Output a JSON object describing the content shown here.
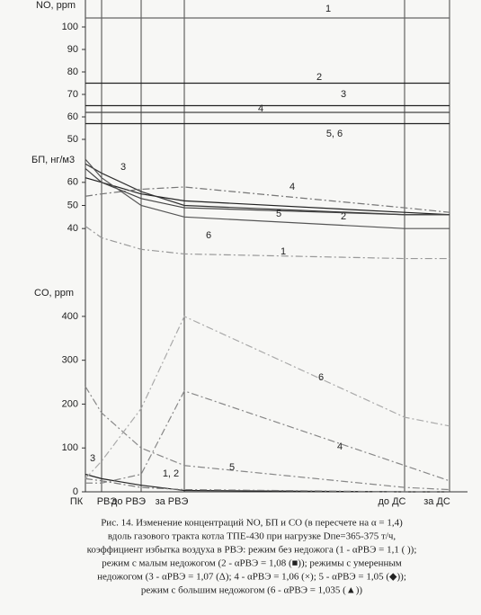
{
  "chart_data": [
    {
      "type": "line",
      "title": "NO, ppm",
      "ylim": [
        48,
        106
      ],
      "yticks": [
        50,
        60,
        70,
        80,
        90,
        100
      ],
      "series": [
        {
          "label": "1",
          "color": "#666",
          "style": "solid",
          "values": [
            104,
            104,
            104,
            104,
            104,
            104
          ]
        },
        {
          "label": "2",
          "color": "#222",
          "style": "solid",
          "values": [
            75,
            75,
            75,
            75,
            75,
            75
          ]
        },
        {
          "label": "3",
          "color": "#222",
          "style": "solid",
          "values": [
            65,
            65,
            65,
            65,
            65,
            65
          ]
        },
        {
          "label": "4",
          "color": "#444",
          "style": "solid",
          "values": [
            62,
            62,
            62,
            62,
            62,
            62
          ]
        },
        {
          "label": "5, 6",
          "color": "#222",
          "style": "solid",
          "values": [
            57,
            57,
            57,
            57,
            57,
            57
          ]
        }
      ]
    },
    {
      "type": "line",
      "title": "БП, нг/м3",
      "ylim": [
        28,
        72
      ],
      "yticks": [
        40,
        50,
        60
      ],
      "series": [
        {
          "label": "1",
          "color": "#999",
          "style": "dashdot",
          "values": [
            41,
            36,
            31,
            29,
            27,
            27
          ]
        },
        {
          "label": "2",
          "color": "#222",
          "style": "solid",
          "values": [
            62,
            60,
            55,
            52,
            47,
            46
          ]
        },
        {
          "label": "3",
          "color": "#333",
          "style": "solid",
          "values": [
            68,
            64,
            56,
            50,
            46,
            46
          ]
        },
        {
          "label": "4",
          "color": "#777",
          "style": "dashdot",
          "values": [
            54,
            55,
            57,
            58,
            49,
            47
          ]
        },
        {
          "label": "5",
          "color": "#444",
          "style": "solid",
          "values": [
            66,
            60,
            53,
            49,
            46,
            46
          ]
        },
        {
          "label": "6",
          "color": "#555",
          "style": "solid",
          "values": [
            70,
            62,
            50,
            45,
            40,
            40
          ]
        }
      ]
    },
    {
      "type": "line",
      "title": "CO, ppm",
      "ylim": [
        0,
        410
      ],
      "yticks": [
        0,
        100,
        200,
        300,
        400
      ],
      "categories": [
        "ПК",
        "РВЭ",
        "до РВЭ",
        "за РВЭ",
        "до ДС",
        "за ДС"
      ],
      "series": [
        {
          "label": "1, 2",
          "color": "#222",
          "style": "solid",
          "values": [
            40,
            30,
            15,
            3,
            0,
            0
          ]
        },
        {
          "label": "3",
          "color": "#777",
          "style": "dashdot",
          "values": [
            30,
            25,
            10,
            5,
            0,
            0
          ]
        },
        {
          "label": "4",
          "color": "#888",
          "style": "dashdot",
          "values": [
            20,
            20,
            40,
            230,
            60,
            25
          ]
        },
        {
          "label": "5",
          "color": "#888",
          "style": "dashdot",
          "values": [
            240,
            180,
            100,
            60,
            10,
            5
          ]
        },
        {
          "label": "6",
          "color": "#aaa",
          "style": "dashdot",
          "values": [
            30,
            70,
            190,
            400,
            170,
            150
          ]
        }
      ]
    }
  ],
  "caption": [
    "Рис. 14. Изменение концентраций NO, БП и CO (в пересчете на α = 1,4)",
    "вдоль газового тракта котла ТПЕ-430 при нагрузке Dпе=365-375 т/ч,",
    "коэффициент избытка воздуха в РВЭ: режим без недожога (1 - αРВЭ = 1,1 ( ));",
    "режим с малым недожогом (2 - αРВЭ = 1,08 (■)); режимы с умеренным",
    "недожогом (3 - αРВЭ = 1,07 (Δ); 4 - αРВЭ = 1,06 (×); 5 - αРВЭ = 1,05 (◆));",
    "режим с большим недожогом (6 - αРВЭ = 1,035 (▲))"
  ]
}
